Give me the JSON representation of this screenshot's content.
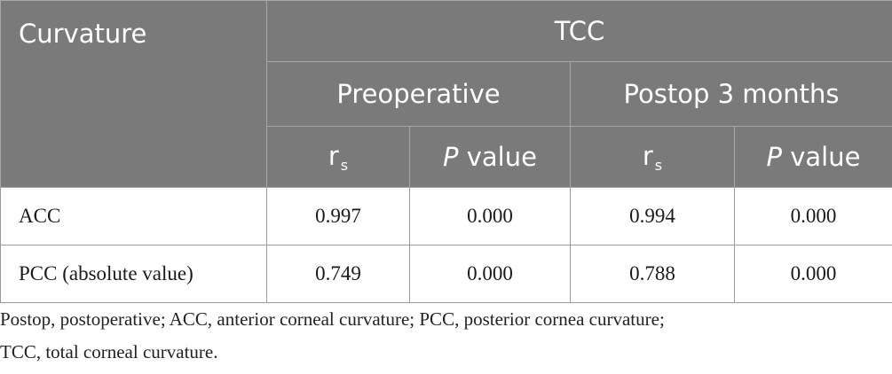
{
  "table": {
    "header": {
      "curvature": "Curvature",
      "group": "TCC",
      "preoperative": "Preoperative",
      "postop": "Postop 3 months",
      "rs_main": "r",
      "rs_sub": "s",
      "p_italic": "P",
      "p_rest": " value"
    },
    "rows": [
      {
        "label": "ACC",
        "pre_rs": "0.997",
        "pre_p": "0.000",
        "post_rs": "0.994",
        "post_p": "0.000"
      },
      {
        "label": "PCC (absolute value)",
        "pre_rs": "0.749",
        "pre_p": "0.000",
        "post_rs": "0.788",
        "post_p": "0.000"
      }
    ]
  },
  "footnote": {
    "line1": "Postop, postoperative; ACC, anterior corneal curvature; PCC, posterior cornea curvature;",
    "line2": "TCC, total corneal curvature."
  },
  "colors": {
    "header_bg": "#7a7a7a",
    "header_text": "#ffffff",
    "border": "#9a9a9a"
  }
}
